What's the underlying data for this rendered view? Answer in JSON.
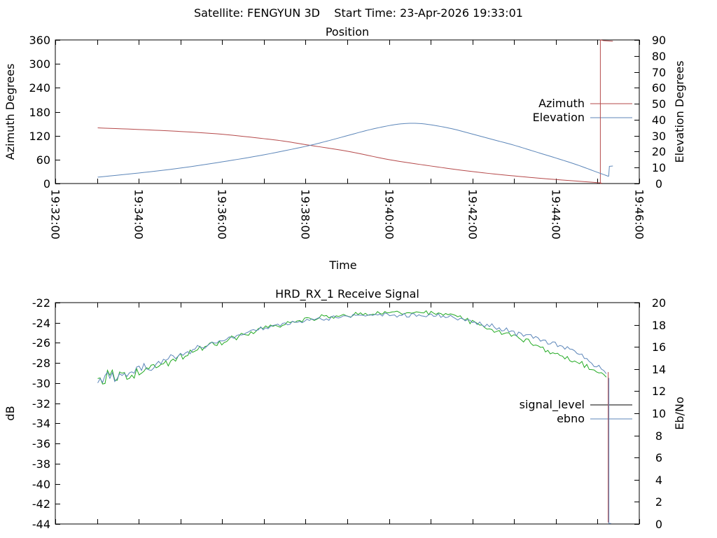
{
  "header": {
    "title": "Satellite: FENGYUN 3D    Start Time: 23-Apr-2026 19:33:01"
  },
  "chart_data": [
    {
      "type": "line",
      "title": "Position",
      "xlabel": "Time",
      "ylabel_left": "Azimuth Degrees",
      "ylabel_right": "Elevation Degrees",
      "x_range_seconds": [
        0,
        840
      ],
      "x_major_step_seconds": 120,
      "x_minor_step_seconds": 60,
      "x_tick_labels": [
        "19:32:00",
        "19:34:00",
        "19:36:00",
        "19:38:00",
        "19:40:00",
        "19:42:00",
        "19:44:00",
        "19:46:00"
      ],
      "show_x_tick_labels": true,
      "y_left": {
        "min": 0,
        "max": 360,
        "ticks": [
          0,
          60,
          120,
          180,
          240,
          300,
          360
        ]
      },
      "y_right": {
        "min": 0,
        "max": 90,
        "ticks": [
          0,
          10,
          20,
          30,
          40,
          50,
          60,
          70,
          80,
          90
        ]
      },
      "legend": [
        {
          "label": "Azimuth",
          "color": "#b5494a"
        },
        {
          "label": "Elevation",
          "color": "#5c86b9"
        }
      ],
      "series": [
        {
          "name": "azimuth",
          "kind": "smooth",
          "axis": "left",
          "color": "#b5494a",
          "points": [
            [
              61,
              139.5
            ],
            [
              120,
              135.5
            ],
            [
              180,
              130.5
            ],
            [
              240,
              123.5
            ],
            [
              300,
              112.5
            ],
            [
              330,
              106
            ],
            [
              360,
              97.5
            ],
            [
              420,
              81
            ],
            [
              480,
              60
            ],
            [
              540,
              44
            ],
            [
              600,
              30
            ],
            [
              660,
              19
            ],
            [
              720,
              10
            ],
            [
              780,
              2.2
            ],
            [
              784,
              0.3
            ]
          ]
        },
        {
          "name": "azimuth-wrap-line",
          "kind": "line",
          "axis": "left",
          "color": "#b5494a",
          "points": [
            [
              784,
              0.2
            ],
            [
              784,
              360
            ]
          ]
        },
        {
          "name": "azimuth-after-wrap",
          "kind": "line",
          "axis": "left",
          "color": "#b5494a",
          "points": [
            [
              784,
              360
            ],
            [
              789,
              358.2
            ],
            [
              802,
              356.8
            ]
          ]
        },
        {
          "name": "elevation",
          "kind": "smooth",
          "axis": "right",
          "color": "#5c86b9",
          "points": [
            [
              61,
              4
            ],
            [
              120,
              6.6
            ],
            [
              180,
              9.7
            ],
            [
              240,
              13.6
            ],
            [
              300,
              18
            ],
            [
              360,
              23.3
            ],
            [
              390,
              26.5
            ],
            [
              420,
              30
            ],
            [
              450,
              33.5
            ],
            [
              480,
              36.3
            ],
            [
              500,
              37.5
            ],
            [
              520,
              37.7
            ],
            [
              540,
              36.8
            ],
            [
              570,
              34.4
            ],
            [
              600,
              31
            ],
            [
              630,
              27.5
            ],
            [
              660,
              24
            ],
            [
              690,
              20
            ],
            [
              720,
              16
            ],
            [
              750,
              11.8
            ],
            [
              780,
              7
            ],
            [
              796,
              4.5
            ]
          ]
        },
        {
          "name": "elevation-end-step",
          "kind": "line",
          "axis": "right",
          "color": "#5c86b9",
          "points": [
            [
              796,
              4.5
            ],
            [
              797,
              10.8
            ],
            [
              802,
              11
            ]
          ]
        }
      ]
    },
    {
      "type": "line",
      "title": "HRD_RX_1 Receive Signal",
      "xlabel": "",
      "ylabel_left": "dB",
      "ylabel_right": "Eb/No",
      "x_range_seconds": [
        0,
        840
      ],
      "x_major_step_seconds": 120,
      "x_minor_step_seconds": 60,
      "x_tick_labels": [],
      "show_x_tick_labels": false,
      "y_left": {
        "min": -44,
        "max": -22,
        "ticks": [
          -22,
          -24,
          -26,
          -28,
          -30,
          -32,
          -34,
          -36,
          -38,
          -40,
          -42,
          -44
        ]
      },
      "y_right": {
        "min": 0,
        "max": 20,
        "ticks": [
          0,
          2,
          4,
          6,
          8,
          10,
          12,
          14,
          16,
          18,
          20
        ]
      },
      "legend": [
        {
          "label": "signal_level",
          "color": "#000000"
        },
        {
          "label": "ebno",
          "color": "#5c86b9"
        }
      ],
      "series": [
        {
          "name": "signal_level",
          "kind": "noisy",
          "axis": "left",
          "color": "#22aa22",
          "seed": 12345,
          "step_seconds": 3.5,
          "points": [
            [
              61,
              -30.0
            ],
            [
              90,
              -29.5
            ],
            [
              120,
              -28.9
            ],
            [
              150,
              -28.2
            ],
            [
              180,
              -27.4
            ],
            [
              210,
              -26.6
            ],
            [
              240,
              -25.9
            ],
            [
              270,
              -25.2
            ],
            [
              300,
              -24.6
            ],
            [
              330,
              -24.1
            ],
            [
              360,
              -23.7
            ],
            [
              390,
              -23.4
            ],
            [
              420,
              -23.2
            ],
            [
              450,
              -23.1
            ],
            [
              480,
              -23.0
            ],
            [
              510,
              -23.0
            ],
            [
              540,
              -23.05
            ],
            [
              565,
              -23.15
            ],
            [
              600,
              -23.9
            ],
            [
              625,
              -24.6
            ],
            [
              660,
              -25.4
            ],
            [
              686,
              -26.0
            ],
            [
              720,
              -27.1
            ],
            [
              746,
              -27.8
            ],
            [
              775,
              -28.7
            ],
            [
              794,
              -29.3
            ]
          ],
          "noise_amplitude": [
            [
              61,
              1.6
            ],
            [
              90,
              0.9
            ],
            [
              130,
              0.6
            ],
            [
              200,
              0.4
            ],
            [
              300,
              0.3
            ],
            [
              550,
              0.28
            ],
            [
              650,
              0.33
            ],
            [
              794,
              0.4
            ]
          ]
        },
        {
          "name": "ebno",
          "kind": "noisy",
          "axis": "right",
          "color": "#5c86b9",
          "seed": 98765,
          "step_seconds": 3.5,
          "points": [
            [
              61,
              12.8
            ],
            [
              90,
              13.3
            ],
            [
              120,
              13.9
            ],
            [
              150,
              14.6
            ],
            [
              180,
              15.3
            ],
            [
              210,
              16.0
            ],
            [
              240,
              16.6
            ],
            [
              270,
              17.2
            ],
            [
              300,
              17.7
            ],
            [
              330,
              18.1
            ],
            [
              360,
              18.4
            ],
            [
              390,
              18.6
            ],
            [
              420,
              18.75
            ],
            [
              450,
              18.85
            ],
            [
              480,
              18.9
            ],
            [
              510,
              18.9
            ],
            [
              540,
              18.85
            ],
            [
              565,
              18.7
            ],
            [
              600,
              18.3
            ],
            [
              625,
              17.9
            ],
            [
              660,
              17.3
            ],
            [
              686,
              16.9
            ],
            [
              720,
              16.2
            ],
            [
              746,
              15.6
            ],
            [
              775,
              14.5
            ],
            [
              794,
              13.6
            ]
          ],
          "noise_amplitude": [
            [
              61,
              1.3
            ],
            [
              90,
              0.7
            ],
            [
              130,
              0.5
            ],
            [
              200,
              0.33
            ],
            [
              300,
              0.25
            ],
            [
              550,
              0.25
            ],
            [
              650,
              0.28
            ],
            [
              794,
              0.33
            ]
          ]
        },
        {
          "name": "signal-drop-line",
          "kind": "line",
          "axis": "left",
          "color": "#b5494a",
          "points": [
            [
              795.3,
              -28.9
            ],
            [
              795.3,
              -43.85
            ]
          ]
        },
        {
          "name": "ebno-drop-line",
          "kind": "line",
          "axis": "right",
          "color": "#5c86b9",
          "points": [
            [
              796.3,
              13.2
            ],
            [
              796.3,
              0.05
            ],
            [
              799.5,
              0.05
            ]
          ]
        }
      ]
    }
  ]
}
